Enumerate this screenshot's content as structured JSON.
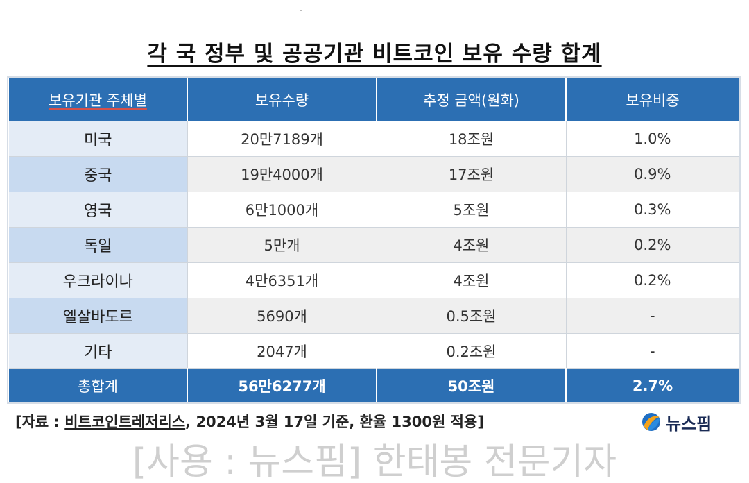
{
  "title": "각 국 정부 및 공공기관 비트코인 보유 수량 합계",
  "table": {
    "headers": [
      "보유기관 주체별",
      "보유수량",
      "추정 금액(원화)",
      "보유비중"
    ],
    "rows": [
      {
        "name": "미국",
        "qty": "20만7189개",
        "amount": "18조원",
        "share": "1.0%"
      },
      {
        "name": "중국",
        "qty": "19만4000개",
        "amount": "17조원",
        "share": "0.9%"
      },
      {
        "name": "영국",
        "qty": "6만1000개",
        "amount": "5조원",
        "share": "0.3%"
      },
      {
        "name": "독일",
        "qty": "5만개",
        "amount": "4조원",
        "share": "0.2%"
      },
      {
        "name": "우크라이나",
        "qty": "4만6351개",
        "amount": "4조원",
        "share": "0.2%"
      },
      {
        "name": "엘살바도르",
        "qty": "5690개",
        "amount": "0.5조원",
        "share": "-"
      },
      {
        "name": "기타",
        "qty": "2047개",
        "amount": "0.2조원",
        "share": "-"
      }
    ],
    "total": {
      "name": "총합계",
      "qty": "56만6277개",
      "amount": "50조원",
      "share": "2.7%"
    }
  },
  "footer": {
    "prefix": "[자료 : ",
    "source": "비트코인트레저리스",
    "suffix": ", 2024년 3월 17일 기준, 환율 1300원 적용]"
  },
  "logo": {
    "text": "뉴스핌",
    "icon": "newspim-logo-icon"
  },
  "caption": "[사용 : 뉴스핌] 한태봉 전문기자",
  "colors": {
    "header_blue": "#2c6fb3",
    "name_light": "#e4ecf6",
    "name_dark": "#c8daf0"
  }
}
